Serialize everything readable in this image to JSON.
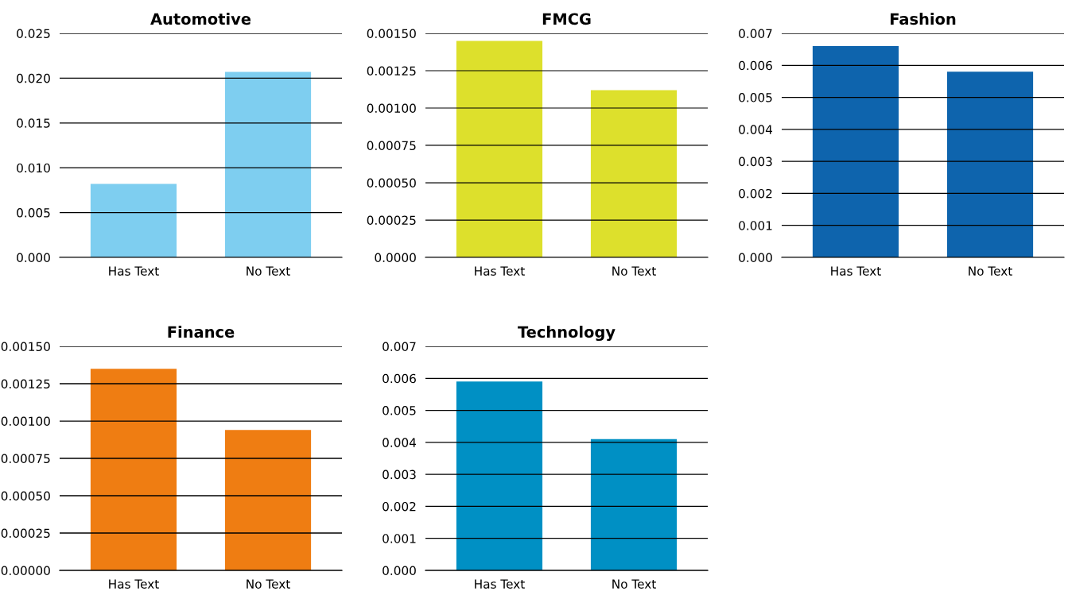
{
  "chart_data": [
    {
      "type": "bar",
      "title": "Automotive",
      "categories": [
        "Has Text",
        "No Text"
      ],
      "values": [
        0.0082,
        0.0207
      ],
      "color": "#7ecef0",
      "ylim": [
        0,
        0.025
      ],
      "yticks": [
        {
          "value": 0,
          "label": "0.000"
        },
        {
          "value": 0.005,
          "label": "0.005"
        },
        {
          "value": 0.01,
          "label": "0.010"
        },
        {
          "value": 0.015,
          "label": "0.015"
        },
        {
          "value": 0.02,
          "label": "0.020"
        },
        {
          "value": 0.025,
          "label": "0.025"
        }
      ],
      "grid": "y",
      "legend": false
    },
    {
      "type": "bar",
      "title": "FMCG",
      "categories": [
        "Has Text",
        "No Text"
      ],
      "values": [
        0.00145,
        0.00112
      ],
      "color": "#dde02c",
      "ylim": [
        0,
        0.0015
      ],
      "yticks": [
        {
          "value": 0,
          "label": "0.0000"
        },
        {
          "value": 0.00025,
          "label": "0.00025"
        },
        {
          "value": 0.0005,
          "label": "0.00050"
        },
        {
          "value": 0.00075,
          "label": "0.00075"
        },
        {
          "value": 0.001,
          "label": "0.00100"
        },
        {
          "value": 0.00125,
          "label": "0.00125"
        },
        {
          "value": 0.0015,
          "label": "0.00150"
        }
      ],
      "grid": "y",
      "legend": false
    },
    {
      "type": "bar",
      "title": "Fashion",
      "categories": [
        "Has Text",
        "No Text"
      ],
      "values": [
        0.0066,
        0.0058
      ],
      "color": "#0e64ad",
      "ylim": [
        0,
        0.007
      ],
      "yticks": [
        {
          "value": 0,
          "label": "0.000"
        },
        {
          "value": 0.001,
          "label": "0.001"
        },
        {
          "value": 0.002,
          "label": "0.002"
        },
        {
          "value": 0.003,
          "label": "0.003"
        },
        {
          "value": 0.004,
          "label": "0.004"
        },
        {
          "value": 0.005,
          "label": "0.005"
        },
        {
          "value": 0.006,
          "label": "0.006"
        },
        {
          "value": 0.007,
          "label": "0.007"
        }
      ],
      "grid": "y",
      "legend": false
    },
    {
      "type": "bar",
      "title": "Finance",
      "categories": [
        "Has Text",
        "No Text"
      ],
      "values": [
        0.00135,
        0.00094
      ],
      "color": "#ef7d12",
      "ylim": [
        0,
        0.0015
      ],
      "yticks": [
        {
          "value": 0,
          "label": "0.00000"
        },
        {
          "value": 0.00025,
          "label": "0.00025"
        },
        {
          "value": 0.0005,
          "label": "0.00050"
        },
        {
          "value": 0.00075,
          "label": "0.00075"
        },
        {
          "value": 0.001,
          "label": "0.00100"
        },
        {
          "value": 0.00125,
          "label": "0.00125"
        },
        {
          "value": 0.0015,
          "label": "0.00150"
        }
      ],
      "grid": "y",
      "legend": false
    },
    {
      "type": "bar",
      "title": "Technology",
      "categories": [
        "Has Text",
        "No Text"
      ],
      "values": [
        0.0059,
        0.0041
      ],
      "color": "#0090c4",
      "ylim": [
        0,
        0.007
      ],
      "yticks": [
        {
          "value": 0,
          "label": "0.000"
        },
        {
          "value": 0.001,
          "label": "0.001"
        },
        {
          "value": 0.002,
          "label": "0.002"
        },
        {
          "value": 0.003,
          "label": "0.003"
        },
        {
          "value": 0.004,
          "label": "0.004"
        },
        {
          "value": 0.005,
          "label": "0.005"
        },
        {
          "value": 0.006,
          "label": "0.006"
        },
        {
          "value": 0.007,
          "label": "0.007"
        }
      ],
      "grid": "y",
      "legend": false
    }
  ]
}
